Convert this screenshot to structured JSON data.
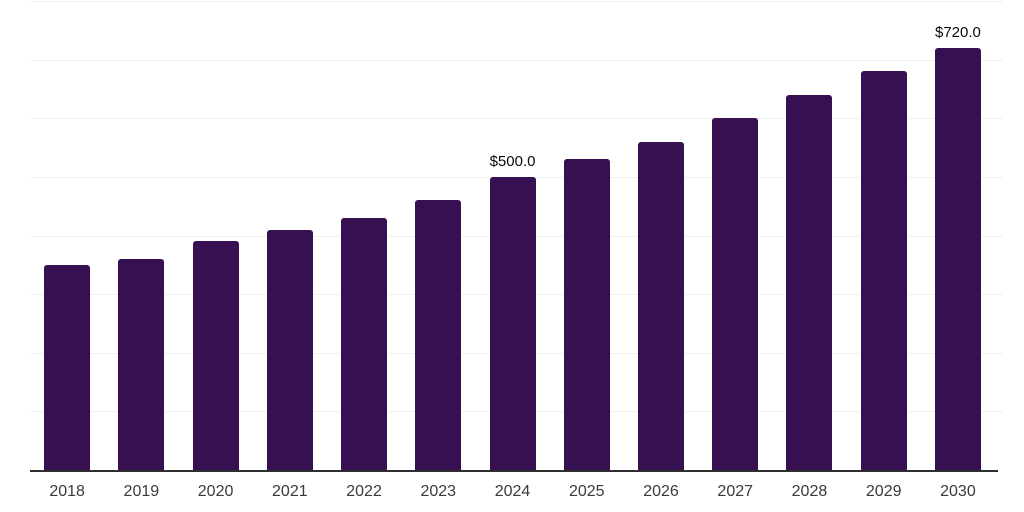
{
  "page": {
    "background": "#ffffff"
  },
  "chart": {
    "bar_color": "#371052",
    "grid_color": "#f0f0f0",
    "axis_line_color": "#2e2e2e",
    "tick_label_color": "#3a3a3a",
    "data_label_color": "#0a0a0a"
  },
  "chart_data": {
    "type": "bar",
    "categories": [
      "2018",
      "2019",
      "2020",
      "2021",
      "2022",
      "2023",
      "2024",
      "2025",
      "2026",
      "2027",
      "2028",
      "2029",
      "2030"
    ],
    "values": [
      350,
      360,
      390,
      410,
      430,
      460,
      500,
      530,
      560,
      600,
      640,
      680,
      720
    ],
    "title": "",
    "xlabel": "",
    "ylabel": "",
    "ylim": [
      0,
      800
    ],
    "grid_step": 100,
    "grid": "on",
    "legend": "none",
    "y_tick_labels_visible": false,
    "data_labels": [
      {
        "category": "2024",
        "text": "$500.0"
      },
      {
        "category": "2030",
        "text": "$720.0"
      }
    ]
  }
}
